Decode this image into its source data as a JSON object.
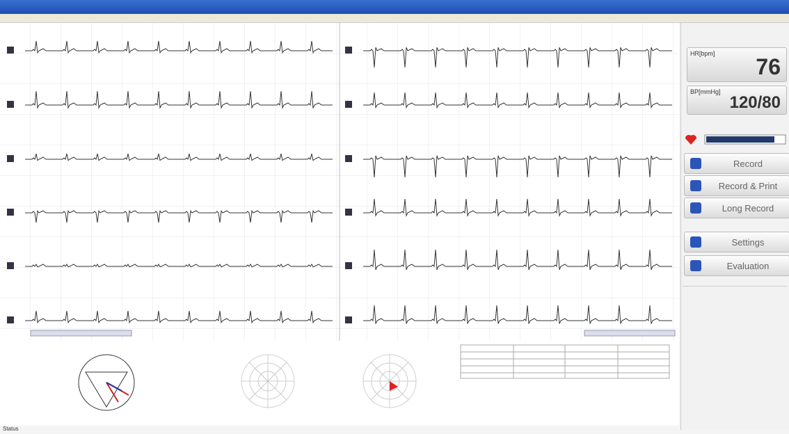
{
  "vitals": {
    "hr_label": "HR[bpm]",
    "hr": "76",
    "bp_label": "BP[mmHg]",
    "bp": "120/80"
  },
  "buttons": [
    "Record",
    "Record & Print",
    "Long Record",
    "Settings",
    "Evaluation"
  ],
  "status": "Status"
}
